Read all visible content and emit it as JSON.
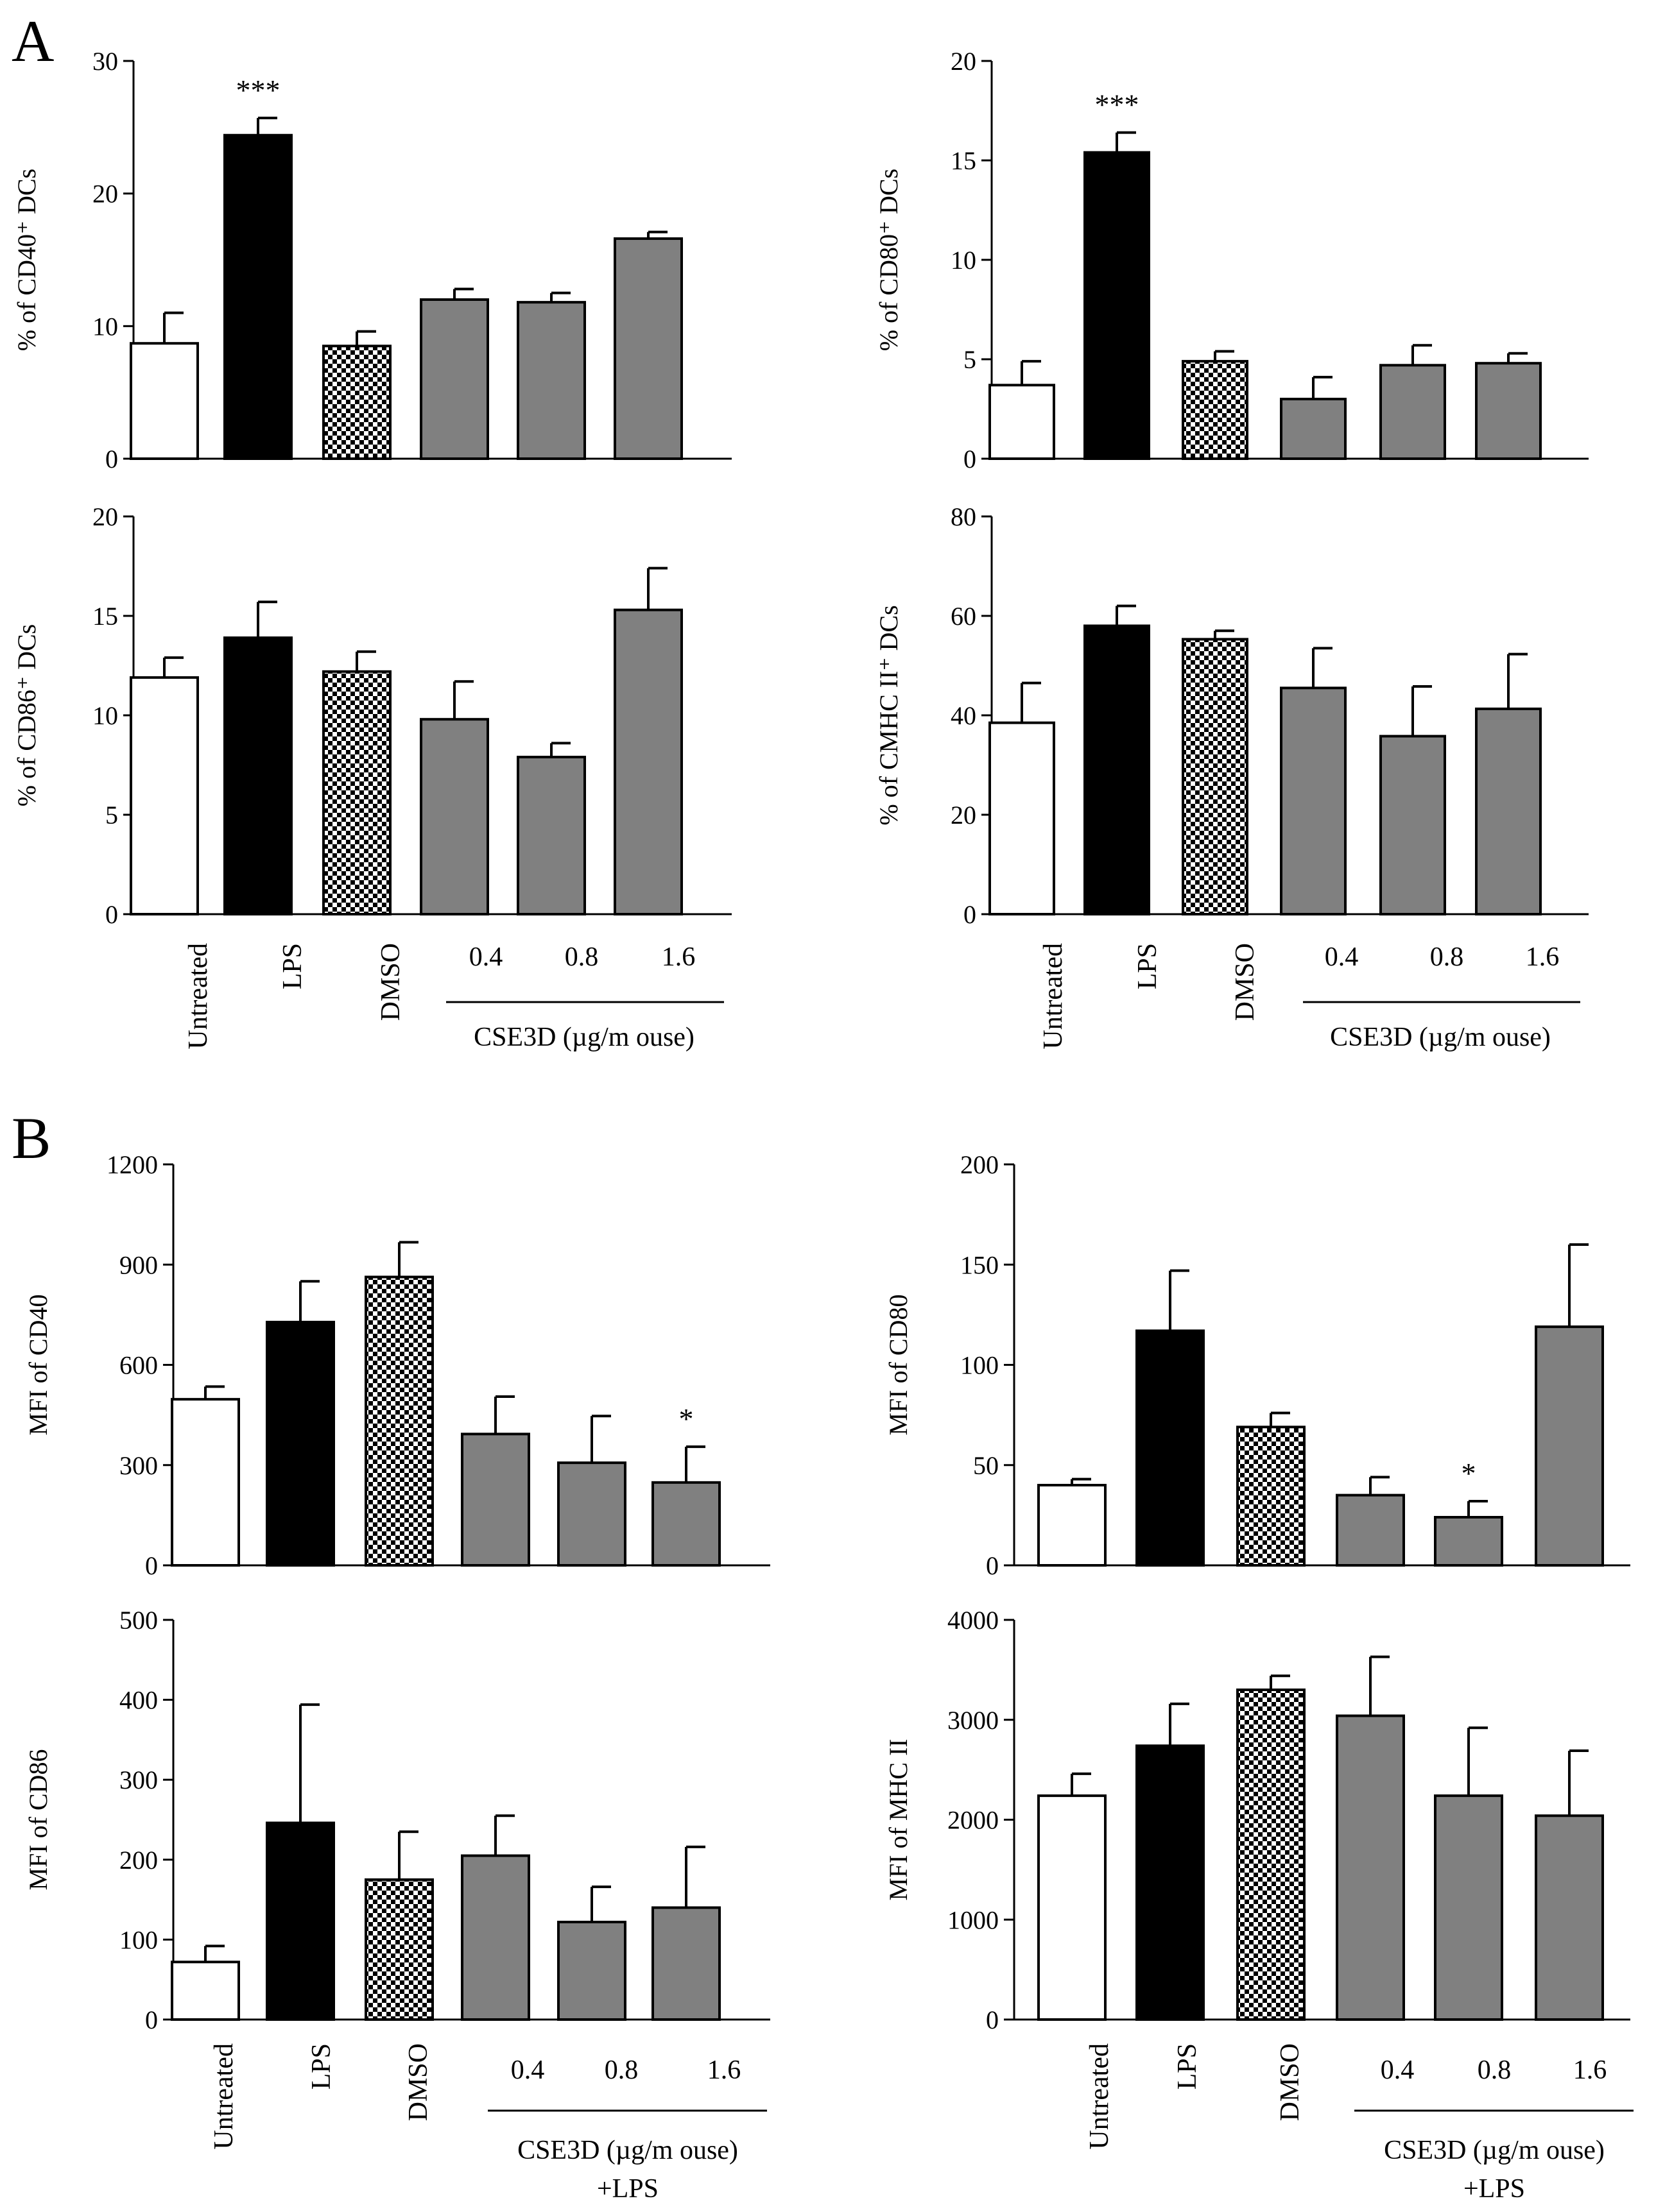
{
  "figure": {
    "panel_letters": [
      "A",
      "B"
    ],
    "group_label": "CSE3D (µg/m ouse)",
    "group_label_lps": "+LPS"
  },
  "styles": {
    "white": "#ffffff",
    "black": "#000000",
    "gray": "#808080"
  },
  "chart_data": [
    {
      "id": "A1",
      "type": "bar",
      "panel": "A",
      "ylabel": "% of CD40⁺ DCs",
      "ylim": [
        0,
        30
      ],
      "yticks": [
        0,
        10,
        20,
        30
      ],
      "categories": [
        "Untreated",
        "LPS",
        "DMSO",
        "0.4",
        "0.8",
        "1.6"
      ],
      "values": [
        8.7,
        24.4,
        8.5,
        12.0,
        11.8,
        16.6
      ],
      "errors": [
        2.3,
        1.3,
        1.1,
        0.8,
        0.7,
        0.5
      ],
      "significance": [
        "",
        "***",
        "",
        "",
        "",
        ""
      ]
    },
    {
      "id": "A2",
      "type": "bar",
      "panel": "A",
      "ylabel": "% of CD80⁺ DCs",
      "ylim": [
        0,
        20
      ],
      "yticks": [
        0,
        5,
        10,
        15,
        20
      ],
      "categories": [
        "Untreated",
        "LPS",
        "DMSO",
        "0.4",
        "0.8",
        "1.6"
      ],
      "values": [
        3.7,
        15.4,
        4.9,
        3.0,
        4.7,
        4.8
      ],
      "errors": [
        1.2,
        1.0,
        0.5,
        1.1,
        1.0,
        0.5
      ],
      "significance": [
        "",
        "***",
        "",
        "",
        "",
        ""
      ]
    },
    {
      "id": "A3",
      "type": "bar",
      "panel": "A",
      "ylabel": "% of CD86⁺ DCs",
      "ylim": [
        0,
        20
      ],
      "yticks": [
        0,
        5,
        10,
        15,
        20
      ],
      "categories": [
        "Untreated",
        "LPS",
        "DMSO",
        "0.4",
        "0.8",
        "1.6"
      ],
      "values": [
        11.9,
        13.9,
        12.2,
        9.8,
        7.9,
        15.3
      ],
      "errors": [
        1.0,
        1.8,
        1.0,
        1.9,
        0.7,
        2.1
      ],
      "significance": [
        "",
        "",
        "",
        "",
        "",
        ""
      ]
    },
    {
      "id": "A4",
      "type": "bar",
      "panel": "A",
      "ylabel": "% of CMHC II⁺ DCs",
      "ylim": [
        0,
        80
      ],
      "yticks": [
        0,
        20,
        40,
        60,
        80
      ],
      "categories": [
        "Untreated",
        "LPS",
        "DMSO",
        "0.4",
        "0.8",
        "1.6"
      ],
      "values": [
        38.5,
        58.0,
        55.3,
        45.5,
        35.8,
        41.3
      ],
      "errors": [
        8.0,
        4.0,
        1.7,
        8.0,
        10.0,
        11.0
      ],
      "significance": [
        "",
        "",
        "",
        "",
        "",
        ""
      ]
    },
    {
      "id": "B1",
      "type": "bar",
      "panel": "B",
      "ylabel": "MFI of CD40",
      "ylim": [
        0,
        1200
      ],
      "yticks": [
        0,
        300,
        600,
        900,
        1200
      ],
      "categories": [
        "Untreated",
        "LPS",
        "DMSO",
        "0.4",
        "0.8",
        "1.6"
      ],
      "values": [
        497,
        728,
        863,
        393,
        307,
        248
      ],
      "errors": [
        38,
        122,
        104,
        112,
        140,
        107
      ],
      "significance": [
        "",
        "",
        "",
        "",
        "",
        "*"
      ]
    },
    {
      "id": "B2",
      "type": "bar",
      "panel": "B",
      "ylabel": "MFI of CD80",
      "ylim": [
        0,
        200
      ],
      "yticks": [
        0,
        50,
        100,
        150,
        200
      ],
      "categories": [
        "Untreated",
        "LPS",
        "DMSO",
        "0.4",
        "0.8",
        "1.6"
      ],
      "values": [
        40,
        117,
        69,
        35,
        24,
        119
      ],
      "errors": [
        3,
        30,
        7,
        9,
        8,
        41
      ],
      "significance": [
        "",
        "",
        "",
        "",
        "*",
        ""
      ]
    },
    {
      "id": "B3",
      "type": "bar",
      "panel": "B",
      "ylabel": "MFI of CD86",
      "ylim": [
        0,
        500
      ],
      "yticks": [
        0,
        100,
        200,
        300,
        400,
        500
      ],
      "categories": [
        "Untreated",
        "LPS",
        "DMSO",
        "0.4",
        "0.8",
        "1.6"
      ],
      "values": [
        72,
        246,
        175,
        205,
        122,
        140
      ],
      "errors": [
        20,
        148,
        60,
        50,
        44,
        76
      ],
      "significance": [
        "",
        "",
        "",
        "",
        "",
        ""
      ]
    },
    {
      "id": "B4",
      "type": "bar",
      "panel": "B",
      "ylabel": "MFI of MHC II",
      "ylim": [
        0,
        4000
      ],
      "yticks": [
        0,
        1000,
        2000,
        3000,
        4000
      ],
      "categories": [
        "Untreated",
        "LPS",
        "DMSO",
        "0.4",
        "0.8",
        "1.6"
      ],
      "values": [
        2240,
        2740,
        3300,
        3040,
        2240,
        2040
      ],
      "errors": [
        220,
        420,
        140,
        590,
        680,
        650
      ],
      "significance": [
        "",
        "",
        "",
        "",
        "",
        ""
      ]
    }
  ]
}
